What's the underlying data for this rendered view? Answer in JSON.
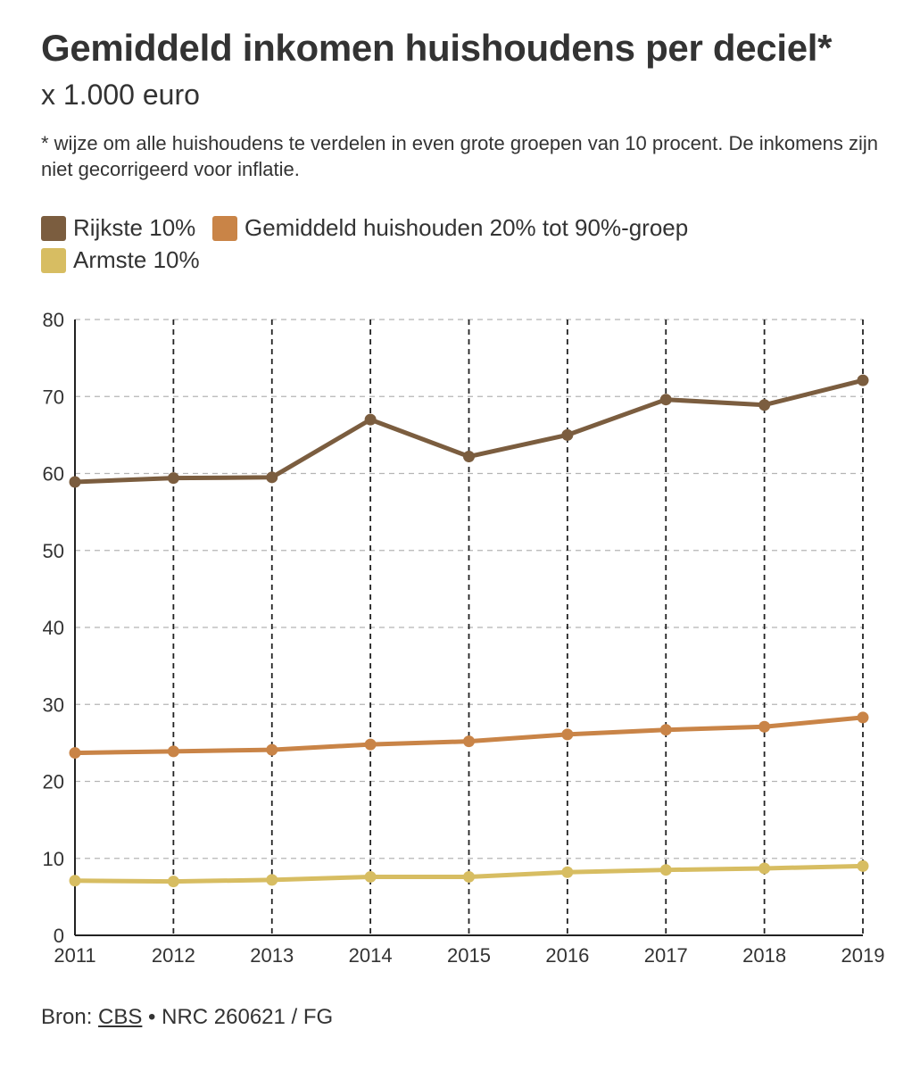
{
  "title": "Gemiddeld inkomen huishoudens per deciel*",
  "subtitle": "x 1.000 euro",
  "note": "* wijze om alle huishoudens te verdelen in even grote groepen van 10 procent. De inkomens zijn niet gecorrigeerd voor inflatie.",
  "footer": {
    "prefix": "Bron: ",
    "source": "CBS",
    "suffix": " • NRC 260621 / FG"
  },
  "chart_data": {
    "type": "line",
    "title": "Gemiddeld inkomen huishoudens per deciel*",
    "ylabel": "x 1.000 euro",
    "xlabel": "",
    "x": [
      "2011",
      "2012",
      "2013",
      "2014",
      "2015",
      "2016",
      "2017",
      "2018",
      "2019"
    ],
    "ylim": [
      0,
      80
    ],
    "yticks": [
      0,
      10,
      20,
      30,
      40,
      50,
      60,
      70,
      80
    ],
    "grid": true,
    "legend_position": "top-left",
    "series": [
      {
        "name": "Rijkste 10%",
        "color": "#7b5d3f",
        "values": [
          58.9,
          59.4,
          59.5,
          67.0,
          62.2,
          65.0,
          69.6,
          68.9,
          72.1
        ]
      },
      {
        "name": "Gemiddeld huishouden 20% tot 90%-groep",
        "color": "#c98447",
        "values": [
          23.7,
          23.9,
          24.1,
          24.8,
          25.2,
          26.1,
          26.7,
          27.1,
          28.3
        ]
      },
      {
        "name": "Armste 10%",
        "color": "#d7bd62",
        "values": [
          7.1,
          7.0,
          7.2,
          7.6,
          7.6,
          8.2,
          8.5,
          8.7,
          9.0
        ]
      }
    ]
  }
}
